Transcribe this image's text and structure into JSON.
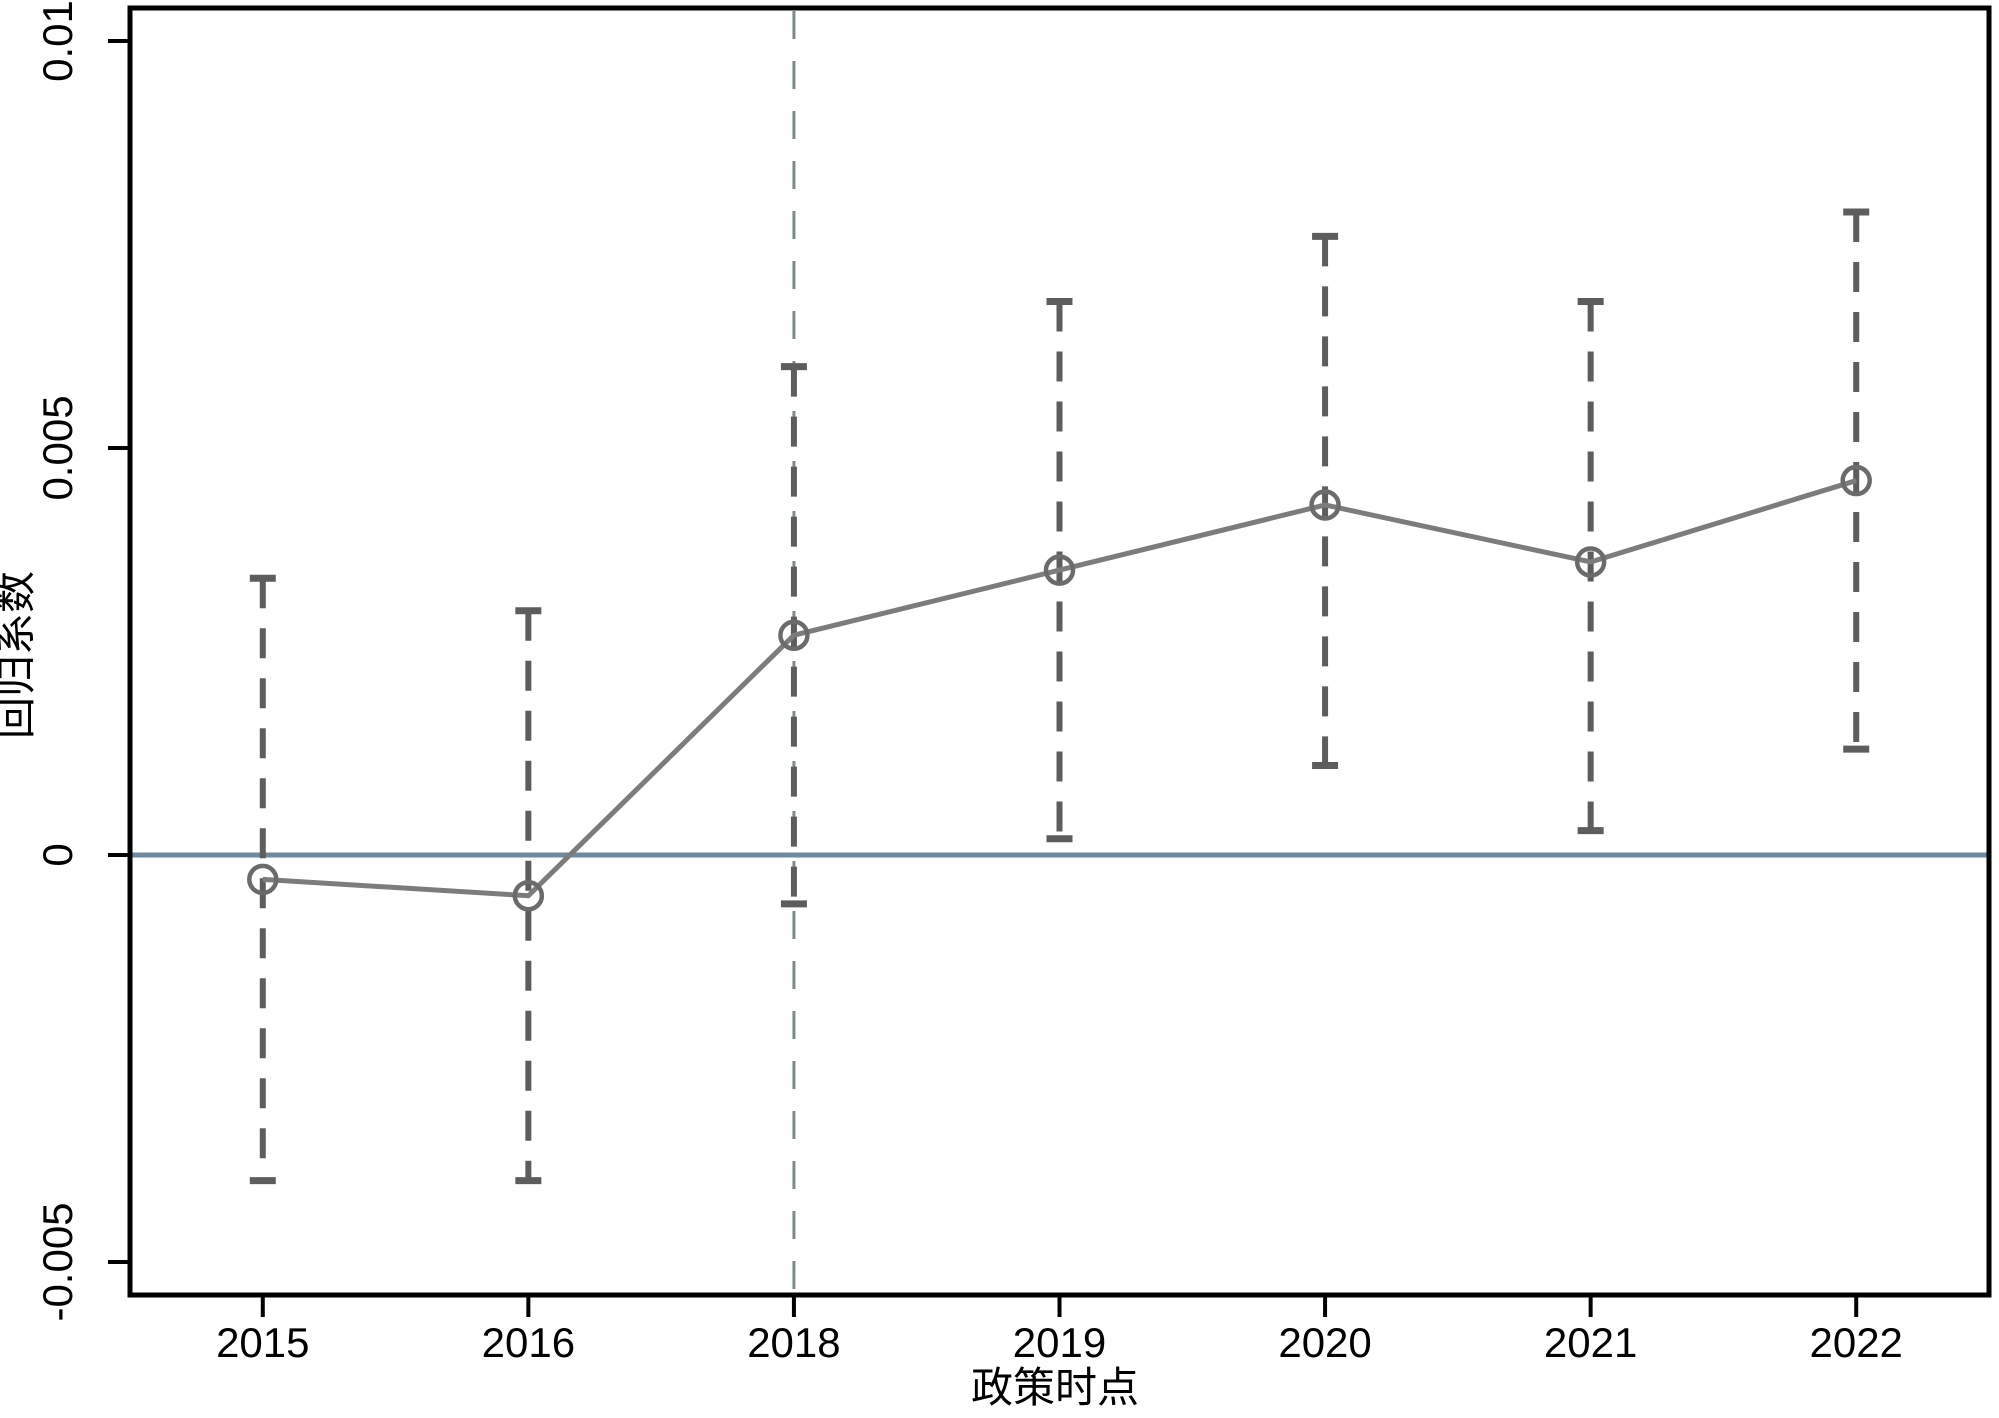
{
  "figure": {
    "background": "#ffffff"
  },
  "chart_data": {
    "type": "line",
    "subtype": "event-study-coefficient-plot-with-confidence-intervals",
    "title": "",
    "xlabel": "政策时点",
    "ylabel": "回归系数",
    "categories": [
      "2015",
      "2016",
      "2018",
      "2019",
      "2020",
      "2021",
      "2022"
    ],
    "series": [
      {
        "name": "回归系数",
        "values": [
          -0.0003,
          -0.0005,
          0.0027,
          0.0035,
          0.0043,
          0.0036,
          0.0046
        ]
      }
    ],
    "ci_low": [
      -0.004,
      -0.004,
      -0.0006,
      0.0002,
      0.0011,
      0.0003,
      0.0013
    ],
    "ci_high": [
      0.0034,
      0.003,
      0.006,
      0.0068,
      0.0076,
      0.0068,
      0.0079
    ],
    "ylim": [
      -0.0054,
      0.0104
    ],
    "yticks": {
      "values": [
        0.01,
        0.005,
        0,
        -0.005
      ],
      "labels": [
        "0.01",
        "0.005",
        "0",
        "-0.005"
      ]
    },
    "grid": false,
    "legend": false,
    "reference": {
      "zero_line_value": 0,
      "policy_line_category": "2018"
    },
    "colors": {
      "zero_line": "#6E8AA1",
      "policy_line": "#7C8D89",
      "error_bar": "#5D5D5D",
      "trend_line": "#7C7C7C",
      "marker": "#6B6B6B",
      "axis": "#000000",
      "text": "#000000"
    }
  }
}
